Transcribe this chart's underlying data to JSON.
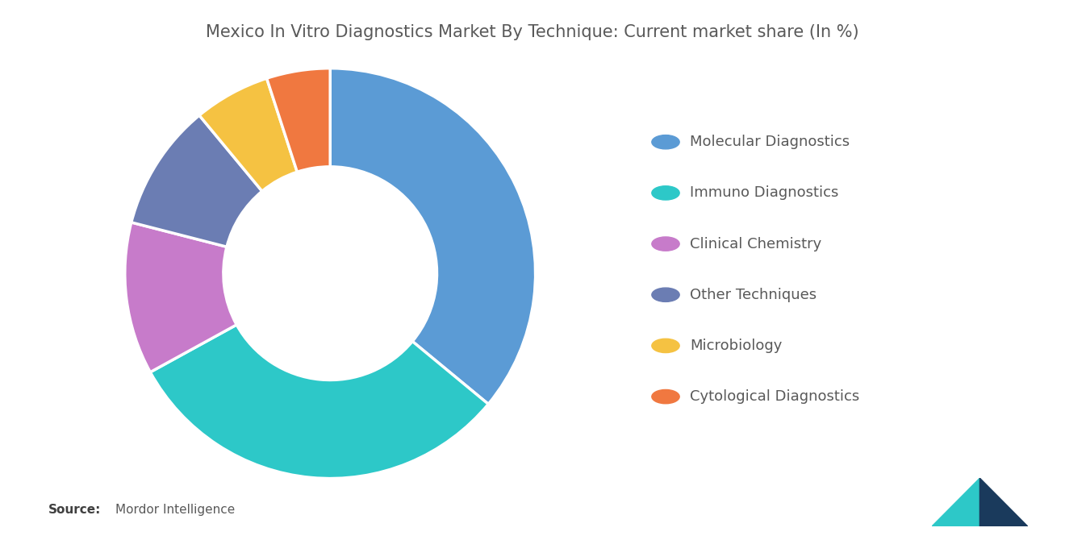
{
  "title": "Mexico In Vitro Diagnostics Market By Technique: Current market share (In %)",
  "segments": [
    {
      "label": "Molecular Diagnostics",
      "value": 36,
      "color": "#5B9BD5"
    },
    {
      "label": "Immuno Diagnostics",
      "value": 31,
      "color": "#2DC8C8"
    },
    {
      "label": "Clinical Chemistry",
      "value": 12,
      "color": "#C77BCA"
    },
    {
      "label": "Other Techniques",
      "value": 10,
      "color": "#6B7DB3"
    },
    {
      "label": "Microbiology",
      "value": 6,
      "color": "#F5C242"
    },
    {
      "label": "Cytological Diagnostics",
      "value": 5,
      "color": "#F07840"
    }
  ],
  "title_color": "#595959",
  "title_fontsize": 15,
  "legend_fontsize": 13,
  "background_color": "#ffffff",
  "source_fontsize": 11,
  "teal_color": "#2DC8C8",
  "navy_color": "#1A3A5C"
}
